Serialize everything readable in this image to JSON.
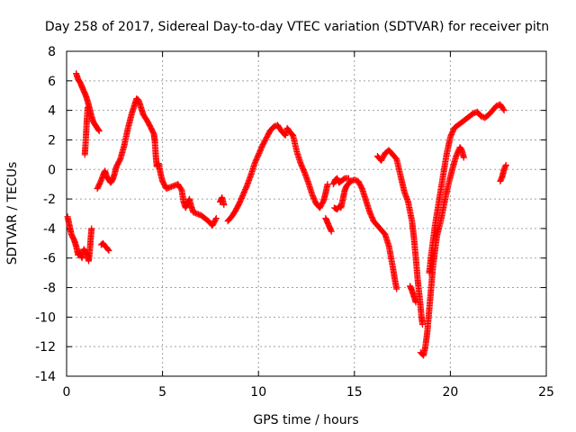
{
  "chart_data": {
    "type": "scatter",
    "title": "Day 258 of 2017, Sidereal Day-to-day VTEC variation (SDTVAR) for receiver pitn",
    "xlabel": "GPS time / hours",
    "ylabel": "SDTVAR / TECUs",
    "xlim": [
      0,
      25
    ],
    "ylim": [
      -14,
      8
    ],
    "xticks": [
      "0",
      "5",
      "10",
      "15",
      "20",
      "25"
    ],
    "yticks": [
      "-14",
      "-12",
      "-10",
      "-8",
      "-6",
      "-4",
      "-2",
      "0",
      "2",
      "4",
      "6",
      "8"
    ],
    "grid": true,
    "marker": "+",
    "color": "#ff0000",
    "segments": [
      [
        [
          0.05,
          -3.2
        ],
        [
          0.15,
          -3.8
        ],
        [
          0.25,
          -4.4
        ],
        [
          0.4,
          -4.8
        ],
        [
          0.5,
          -5.2
        ],
        [
          0.6,
          -5.8
        ],
        [
          0.7,
          -5.6
        ],
        [
          0.8,
          -6.0
        ],
        [
          0.9,
          -5.4
        ],
        [
          1.0,
          -5.6
        ],
        [
          1.1,
          -5.8
        ],
        [
          1.15,
          -6.2
        ],
        [
          1.2,
          -5.6
        ],
        [
          1.25,
          -4.8
        ],
        [
          1.3,
          -4.0
        ]
      ],
      [
        [
          0.5,
          6.5
        ],
        [
          0.6,
          6.1
        ],
        [
          0.7,
          5.9
        ],
        [
          0.8,
          5.6
        ],
        [
          0.9,
          5.3
        ],
        [
          1.0,
          5.0
        ],
        [
          1.1,
          4.6
        ],
        [
          1.2,
          4.1
        ],
        [
          1.3,
          3.6
        ],
        [
          1.4,
          3.2
        ],
        [
          1.5,
          3.0
        ],
        [
          1.6,
          2.8
        ],
        [
          1.7,
          2.6
        ]
      ],
      [
        [
          0.95,
          1.0
        ],
        [
          1.0,
          2.0
        ],
        [
          1.05,
          3.2
        ],
        [
          1.1,
          4.2
        ]
      ],
      [
        [
          1.6,
          -1.3
        ],
        [
          1.75,
          -0.9
        ],
        [
          1.9,
          -0.4
        ],
        [
          2.0,
          -0.1
        ],
        [
          2.1,
          -0.5
        ],
        [
          2.2,
          -0.7
        ],
        [
          2.3,
          -0.9
        ],
        [
          2.4,
          -0.7
        ],
        [
          2.5,
          -0.3
        ],
        [
          2.6,
          0.2
        ],
        [
          2.8,
          0.7
        ],
        [
          3.0,
          1.6
        ],
        [
          3.2,
          2.8
        ],
        [
          3.4,
          3.8
        ],
        [
          3.55,
          4.4
        ],
        [
          3.65,
          4.8
        ],
        [
          3.75,
          4.7
        ],
        [
          3.9,
          4.1
        ],
        [
          4.0,
          3.7
        ],
        [
          4.2,
          3.3
        ],
        [
          4.4,
          2.8
        ],
        [
          4.55,
          2.4
        ],
        [
          4.6,
          1.9
        ],
        [
          4.65,
          0.9
        ],
        [
          4.7,
          0.2
        ],
        [
          4.8,
          0.4
        ],
        [
          4.9,
          -0.3
        ],
        [
          5.0,
          -0.8
        ],
        [
          5.2,
          -1.3
        ],
        [
          5.4,
          -1.2
        ],
        [
          5.6,
          -1.1
        ],
        [
          5.8,
          -1.0
        ],
        [
          6.0,
          -1.4
        ],
        [
          6.1,
          -2.2
        ],
        [
          6.2,
          -2.6
        ],
        [
          6.3,
          -2.3
        ],
        [
          6.4,
          -2.0
        ],
        [
          6.5,
          -2.5
        ],
        [
          6.6,
          -2.9
        ],
        [
          6.8,
          -3.0
        ],
        [
          7.0,
          -3.1
        ],
        [
          7.2,
          -3.3
        ],
        [
          7.4,
          -3.5
        ],
        [
          7.6,
          -3.8
        ],
        [
          7.8,
          -3.3
        ]
      ],
      [
        [
          1.8,
          -5.1
        ],
        [
          1.9,
          -5.0
        ],
        [
          2.0,
          -5.2
        ],
        [
          2.1,
          -5.3
        ],
        [
          2.2,
          -5.5
        ]
      ],
      [
        [
          8.0,
          -2.2
        ],
        [
          8.1,
          -1.9
        ],
        [
          8.2,
          -2.4
        ]
      ],
      [
        [
          8.4,
          -3.5
        ],
        [
          8.6,
          -3.2
        ],
        [
          8.8,
          -2.8
        ],
        [
          9.0,
          -2.3
        ],
        [
          9.2,
          -1.7
        ],
        [
          9.4,
          -1.1
        ],
        [
          9.6,
          -0.4
        ],
        [
          9.8,
          0.4
        ],
        [
          10.0,
          1.0
        ],
        [
          10.2,
          1.6
        ],
        [
          10.4,
          2.1
        ],
        [
          10.6,
          2.6
        ],
        [
          10.8,
          2.9
        ],
        [
          11.0,
          3.0
        ],
        [
          11.2,
          2.6
        ],
        [
          11.4,
          2.3
        ],
        [
          11.5,
          2.8
        ],
        [
          11.6,
          2.6
        ],
        [
          11.8,
          2.3
        ],
        [
          12.0,
          1.2
        ],
        [
          12.2,
          0.4
        ],
        [
          12.4,
          -0.2
        ],
        [
          12.6,
          -0.9
        ],
        [
          12.8,
          -1.7
        ],
        [
          13.0,
          -2.3
        ],
        [
          13.2,
          -2.6
        ],
        [
          13.4,
          -2.1
        ],
        [
          13.5,
          -1.6
        ],
        [
          13.6,
          -1.0
        ]
      ],
      [
        [
          13.5,
          -3.3
        ],
        [
          13.6,
          -3.6
        ],
        [
          13.7,
          -3.9
        ],
        [
          13.8,
          -4.2
        ]
      ],
      [
        [
          13.95,
          -2.6
        ],
        [
          14.1,
          -2.7
        ],
        [
          14.2,
          -2.5
        ],
        [
          14.3,
          -2.6
        ],
        [
          14.4,
          -2.0
        ],
        [
          14.5,
          -1.4
        ],
        [
          14.6,
          -1.1
        ],
        [
          14.8,
          -0.8
        ],
        [
          15.0,
          -0.7
        ],
        [
          15.2,
          -0.8
        ],
        [
          15.4,
          -1.3
        ],
        [
          15.6,
          -2.1
        ],
        [
          15.8,
          -2.9
        ],
        [
          16.0,
          -3.5
        ],
        [
          16.2,
          -3.8
        ],
        [
          16.4,
          -4.1
        ],
        [
          16.6,
          -4.4
        ],
        [
          16.8,
          -5.2
        ],
        [
          17.0,
          -6.6
        ],
        [
          17.1,
          -7.4
        ],
        [
          17.2,
          -8.1
        ]
      ],
      [
        [
          13.9,
          -1.0
        ],
        [
          14.0,
          -0.7
        ],
        [
          14.1,
          -0.6
        ],
        [
          14.2,
          -0.9
        ],
        [
          14.3,
          -0.8
        ],
        [
          14.5,
          -0.6
        ],
        [
          14.7,
          -0.6
        ]
      ],
      [
        [
          16.2,
          0.9
        ],
        [
          16.4,
          0.6
        ],
        [
          16.6,
          1.1
        ],
        [
          16.8,
          1.3
        ],
        [
          17.0,
          1.0
        ],
        [
          17.2,
          0.7
        ],
        [
          17.4,
          -0.4
        ],
        [
          17.6,
          -1.5
        ],
        [
          17.8,
          -2.2
        ],
        [
          18.0,
          -3.5
        ],
        [
          18.1,
          -4.6
        ],
        [
          18.2,
          -6.0
        ],
        [
          18.3,
          -7.5
        ],
        [
          18.4,
          -8.7
        ],
        [
          18.5,
          -10.0
        ],
        [
          18.55,
          -10.5
        ]
      ],
      [
        [
          17.9,
          -7.9
        ],
        [
          18.0,
          -8.2
        ],
        [
          18.1,
          -8.6
        ],
        [
          18.2,
          -9.0
        ]
      ],
      [
        [
          18.45,
          -12.4
        ],
        [
          18.6,
          -12.6
        ],
        [
          18.7,
          -12.0
        ],
        [
          18.8,
          -11.0
        ],
        [
          18.9,
          -9.5
        ],
        [
          19.0,
          -8.0
        ],
        [
          19.1,
          -6.5
        ],
        [
          19.2,
          -5.5
        ],
        [
          19.3,
          -4.5
        ],
        [
          19.5,
          -3.5
        ],
        [
          19.7,
          -2.2
        ],
        [
          19.9,
          -1.0
        ],
        [
          20.1,
          0.0
        ],
        [
          20.3,
          0.9
        ],
        [
          20.5,
          1.5
        ],
        [
          20.6,
          1.3
        ],
        [
          20.7,
          0.8
        ]
      ],
      [
        [
          18.9,
          -7.0
        ],
        [
          19.0,
          -5.8
        ],
        [
          19.2,
          -3.8
        ],
        [
          19.4,
          -2.2
        ],
        [
          19.6,
          -0.6
        ],
        [
          19.8,
          1.0
        ],
        [
          20.0,
          2.2
        ],
        [
          20.2,
          2.8
        ],
        [
          20.4,
          3.0
        ],
        [
          20.6,
          3.2
        ],
        [
          20.8,
          3.4
        ],
        [
          21.0,
          3.6
        ],
        [
          21.2,
          3.8
        ],
        [
          21.4,
          3.9
        ],
        [
          21.6,
          3.6
        ],
        [
          21.8,
          3.5
        ],
        [
          22.0,
          3.7
        ],
        [
          22.2,
          4.0
        ],
        [
          22.4,
          4.3
        ],
        [
          22.6,
          4.4
        ],
        [
          22.8,
          4.0
        ]
      ],
      [
        [
          22.6,
          -0.8
        ],
        [
          22.7,
          -0.5
        ],
        [
          22.8,
          0.0
        ],
        [
          22.9,
          0.3
        ]
      ]
    ]
  }
}
